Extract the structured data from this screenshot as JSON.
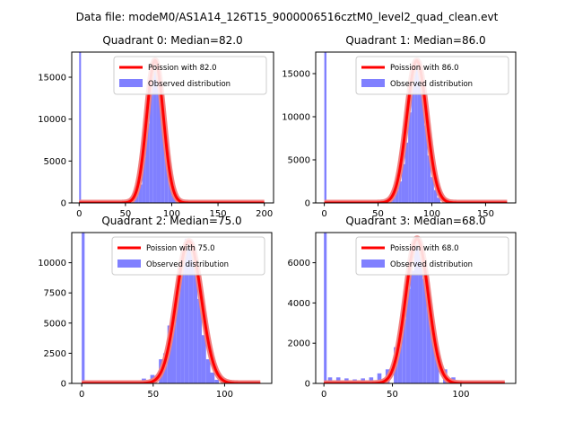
{
  "figure": {
    "suptitle": "Data file: modeM0/AS1A14_126T15_9000006516cztM0_level2_quad_clean.evt"
  },
  "colors": {
    "observed": "#8080ff",
    "poisson": "#ff0000",
    "poisson_highlight": "#f08080",
    "axis": "#000000",
    "background": "#ffffff"
  },
  "chart_data": [
    {
      "type": "bar",
      "title": "Quadrant 0: Median=82.0",
      "xlim": [
        -8,
        210
      ],
      "ylim": [
        0,
        18000
      ],
      "xticks": [
        0,
        50,
        100,
        150,
        200
      ],
      "xtick_labels": [
        "0",
        "50",
        "100",
        "150",
        "200"
      ],
      "yticks": [
        0,
        5000,
        10000,
        15000
      ],
      "ytick_labels": [
        "0",
        "5000",
        "10000",
        "15000"
      ],
      "legend_position": "top-right",
      "legend": [
        "Poission with 82.0",
        "Observed distribution"
      ],
      "poisson_mean": 82.0,
      "poisson_peak": 17000,
      "poisson_range": [
        0,
        200
      ],
      "bin_width": 4,
      "bins": [
        {
          "x": 0,
          "y": 18000
        },
        {
          "x": 56,
          "y": 300
        },
        {
          "x": 60,
          "y": 1000
        },
        {
          "x": 64,
          "y": 2200
        },
        {
          "x": 68,
          "y": 5500
        },
        {
          "x": 72,
          "y": 9500
        },
        {
          "x": 76,
          "y": 15200
        },
        {
          "x": 80,
          "y": 17000
        },
        {
          "x": 84,
          "y": 16000
        },
        {
          "x": 88,
          "y": 11500
        },
        {
          "x": 92,
          "y": 6500
        },
        {
          "x": 96,
          "y": 3000
        },
        {
          "x": 100,
          "y": 900
        },
        {
          "x": 104,
          "y": 300
        }
      ]
    },
    {
      "type": "bar",
      "title": "Quadrant 1: Median=86.0",
      "xlim": [
        -8,
        178
      ],
      "ylim": [
        0,
        17500
      ],
      "xticks": [
        0,
        50,
        100,
        150
      ],
      "xtick_labels": [
        "0",
        "50",
        "100",
        "150"
      ],
      "yticks": [
        0,
        5000,
        10000,
        15000
      ],
      "ytick_labels": [
        "0",
        "5000",
        "10000",
        "15000"
      ],
      "legend_position": "top-right",
      "legend": [
        "Poission with 86.0",
        "Observed distribution"
      ],
      "poisson_mean": 86.0,
      "poisson_peak": 16500,
      "poisson_range": [
        0,
        170
      ],
      "bin_width": 3,
      "bins": [
        {
          "x": 0,
          "y": 17500
        },
        {
          "x": 60,
          "y": 300
        },
        {
          "x": 63,
          "y": 700
        },
        {
          "x": 66,
          "y": 1500
        },
        {
          "x": 69,
          "y": 2500
        },
        {
          "x": 72,
          "y": 4500
        },
        {
          "x": 75,
          "y": 7000
        },
        {
          "x": 78,
          "y": 10500
        },
        {
          "x": 81,
          "y": 14000
        },
        {
          "x": 84,
          "y": 16500
        },
        {
          "x": 87,
          "y": 16000
        },
        {
          "x": 90,
          "y": 12500
        },
        {
          "x": 93,
          "y": 9000
        },
        {
          "x": 96,
          "y": 5500
        },
        {
          "x": 99,
          "y": 3000
        },
        {
          "x": 102,
          "y": 1500
        },
        {
          "x": 105,
          "y": 600
        }
      ]
    },
    {
      "type": "bar",
      "title": "Quadrant 2: Median=75.0",
      "xlim": [
        -7,
        133
      ],
      "ylim": [
        0,
        12500
      ],
      "xticks": [
        0,
        50,
        100
      ],
      "xtick_labels": [
        "0",
        "50",
        "100"
      ],
      "yticks": [
        0,
        2500,
        5000,
        7500,
        10000
      ],
      "ytick_labels": [
        "0",
        "2500",
        "5000",
        "7500",
        "10000"
      ],
      "legend_position": "top-right",
      "legend": [
        "Poission with 75.0",
        "Observed distribution"
      ],
      "poisson_mean": 75.0,
      "poisson_peak": 11800,
      "poisson_range": [
        0,
        125
      ],
      "bin_width": 3,
      "bins": [
        {
          "x": 0,
          "y": 12500
        },
        {
          "x": 42,
          "y": 400
        },
        {
          "x": 48,
          "y": 700
        },
        {
          "x": 54,
          "y": 2000
        },
        {
          "x": 57,
          "y": 2500
        },
        {
          "x": 60,
          "y": 4800
        },
        {
          "x": 63,
          "y": 5500
        },
        {
          "x": 66,
          "y": 8000
        },
        {
          "x": 69,
          "y": 9800
        },
        {
          "x": 72,
          "y": 12000
        },
        {
          "x": 75,
          "y": 11500
        },
        {
          "x": 78,
          "y": 10000
        },
        {
          "x": 81,
          "y": 7000
        },
        {
          "x": 84,
          "y": 4000
        },
        {
          "x": 87,
          "y": 2000
        },
        {
          "x": 90,
          "y": 900
        },
        {
          "x": 93,
          "y": 300
        }
      ]
    },
    {
      "type": "bar",
      "title": "Quadrant 3: Median=68.0",
      "xlim": [
        -6,
        140
      ],
      "ylim": [
        0,
        7500
      ],
      "xticks": [
        0,
        50,
        100
      ],
      "xtick_labels": [
        "0",
        "50",
        "100"
      ],
      "yticks": [
        0,
        2000,
        4000,
        6000
      ],
      "ytick_labels": [
        "0",
        "2000",
        "4000",
        "6000"
      ],
      "legend_position": "top-right",
      "legend": [
        "Poission with 68.0",
        "Observed distribution"
      ],
      "poisson_mean": 68.0,
      "poisson_peak": 7200,
      "poisson_range": [
        0,
        132
      ],
      "bin_width": 3,
      "bins": [
        {
          "x": 0,
          "y": 7500
        },
        {
          "x": 3,
          "y": 300
        },
        {
          "x": 9,
          "y": 300
        },
        {
          "x": 15,
          "y": 250
        },
        {
          "x": 21,
          "y": 200
        },
        {
          "x": 27,
          "y": 250
        },
        {
          "x": 33,
          "y": 300
        },
        {
          "x": 39,
          "y": 500
        },
        {
          "x": 45,
          "y": 700
        },
        {
          "x": 51,
          "y": 1800
        },
        {
          "x": 54,
          "y": 2600
        },
        {
          "x": 57,
          "y": 3200
        },
        {
          "x": 60,
          "y": 4700
        },
        {
          "x": 63,
          "y": 5600
        },
        {
          "x": 66,
          "y": 7000
        },
        {
          "x": 69,
          "y": 6600
        },
        {
          "x": 72,
          "y": 5200
        },
        {
          "x": 75,
          "y": 4000
        },
        {
          "x": 78,
          "y": 2500
        },
        {
          "x": 81,
          "y": 1300
        },
        {
          "x": 87,
          "y": 700
        },
        {
          "x": 93,
          "y": 300
        }
      ]
    }
  ]
}
